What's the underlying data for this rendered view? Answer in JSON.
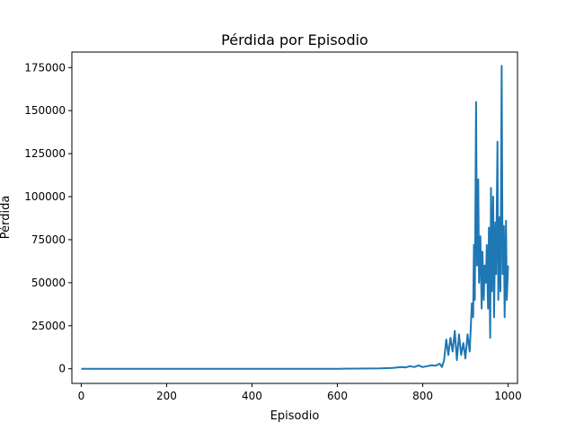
{
  "chart_data": {
    "type": "line",
    "title": "Pérdida por Episodio",
    "xlabel": "Episodio",
    "ylabel": "Pérdida",
    "xlim": [
      -22,
      1022
    ],
    "ylim": [
      -8500,
      184000
    ],
    "xticks": [
      0,
      200,
      400,
      600,
      800,
      1000
    ],
    "xtick_labels": [
      "0",
      "200",
      "400",
      "600",
      "800",
      "1000"
    ],
    "yticks": [
      0,
      25000,
      50000,
      75000,
      100000,
      125000,
      150000,
      175000
    ],
    "ytick_labels": [
      "0",
      "25000",
      "50000",
      "75000",
      "100000",
      "125000",
      "150000",
      "175000"
    ],
    "grid": false,
    "color": "#1f77b4",
    "series": [
      {
        "x": [
          0,
          100,
          200,
          300,
          400,
          500,
          600,
          700,
          730,
          740,
          750,
          760,
          770,
          780,
          790,
          800,
          810,
          820,
          830,
          840,
          845,
          850,
          855,
          860,
          865,
          870,
          875,
          880,
          885,
          890,
          895,
          900,
          905,
          910,
          915,
          918,
          920,
          922,
          925,
          927,
          930,
          932,
          935,
          938,
          940,
          943,
          945,
          948,
          950,
          953,
          955,
          958,
          960,
          962,
          965,
          967,
          970,
          972,
          975,
          977,
          980,
          982,
          985,
          987,
          990,
          992,
          995,
          997,
          1000
        ],
        "y": [
          0,
          0,
          0,
          0,
          0,
          0,
          0,
          200,
          500,
          800,
          1000,
          800,
          1500,
          1000,
          2000,
          1000,
          1500,
          2000,
          1800,
          3000,
          1000,
          5000,
          17000,
          8000,
          18000,
          10000,
          22000,
          5000,
          20000,
          8000,
          15000,
          6000,
          20000,
          10000,
          38000,
          30000,
          72000,
          40000,
          155000,
          60000,
          110000,
          50000,
          77000,
          35000,
          68000,
          40000,
          60000,
          50000,
          72000,
          35000,
          82000,
          18000,
          105000,
          45000,
          100000,
          30000,
          85000,
          55000,
          132000,
          40000,
          88000,
          45000,
          176000,
          55000,
          83000,
          30000,
          86000,
          40000,
          60000
        ]
      }
    ]
  }
}
